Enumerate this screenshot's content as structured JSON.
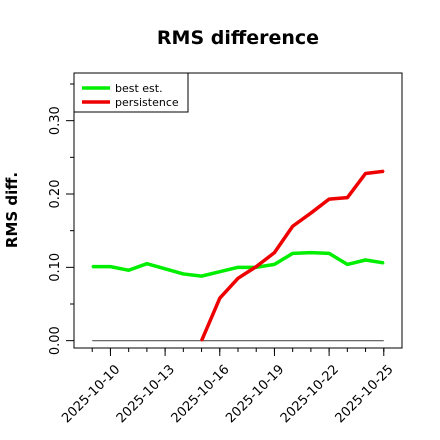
{
  "chart_data": {
    "type": "line",
    "title": "RMS difference",
    "xlabel": "",
    "ylabel": "RMS diff.",
    "x": [
      "2025-10-09",
      "2025-10-10",
      "2025-10-11",
      "2025-10-12",
      "2025-10-13",
      "2025-10-14",
      "2025-10-15",
      "2025-10-16",
      "2025-10-17",
      "2025-10-18",
      "2025-10-19",
      "2025-10-20",
      "2025-10-21",
      "2025-10-22",
      "2025-10-23",
      "2025-10-24",
      "2025-10-25"
    ],
    "xticks": [
      "2025-10-10",
      "2025-10-13",
      "2025-10-16",
      "2025-10-19",
      "2025-10-22",
      "2025-10-25"
    ],
    "xlim": [
      "2025-10-08",
      "2025-10-26"
    ],
    "ylim": [
      -0.01,
      0.365
    ],
    "yticks": [
      "0.00",
      "0.10",
      "0.20",
      "0.30"
    ],
    "ytick_values": [
      0.0,
      0.1,
      0.2,
      0.3
    ],
    "yminor_ticks": [
      0.05,
      0.15,
      0.25,
      0.35
    ],
    "grid": false,
    "legend_position": "top-left",
    "series": [
      {
        "name": "best est.",
        "color": "#00ee00",
        "values": [
          0.101,
          0.101,
          0.096,
          0.105,
          0.098,
          0.091,
          0.088,
          0.094,
          0.1,
          0.1,
          0.104,
          0.119,
          0.12,
          0.119,
          0.104,
          0.11,
          0.106
        ]
      },
      {
        "name": "persistence",
        "color": "#ee0000",
        "values": [
          null,
          null,
          null,
          null,
          null,
          null,
          0.0,
          0.058,
          0.085,
          0.101,
          0.12,
          0.156,
          0.174,
          0.193,
          0.195,
          0.228,
          0.231
        ]
      }
    ],
    "reference_line": {
      "value": 0.0,
      "color": "#555555"
    }
  }
}
